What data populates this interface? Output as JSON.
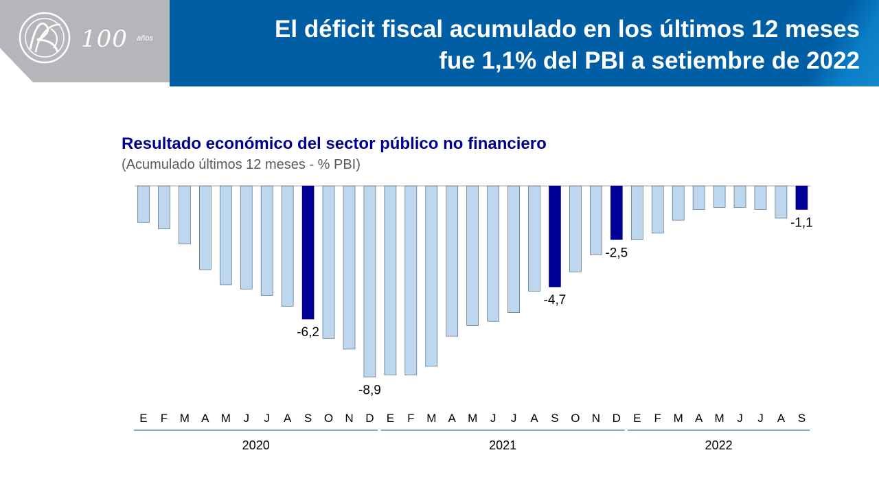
{
  "header": {
    "title_line1": "El déficit fiscal acumulado en los últimos 12 meses",
    "title_line2": "fue 1,1% del PBI a setiembre de 2022"
  },
  "logo": {
    "years": "100",
    "suffix": "años",
    "icon": "bcrp-monogram-logo"
  },
  "colors": {
    "header_bg": "#005ea5",
    "logo_bg": "#b4b6ba",
    "bar_light": "#bdd7ee",
    "bar_highlight": "#000099",
    "title_color": "#00008b"
  },
  "chart_data": {
    "type": "bar",
    "title": "Resultado económico del sector público no financiero",
    "subtitle": "(Acumulado últimos 12 meses - % PBI)",
    "categories": [
      "E",
      "F",
      "M",
      "A",
      "M",
      "J",
      "J",
      "A",
      "S",
      "O",
      "N",
      "D",
      "E",
      "F",
      "M",
      "A",
      "M",
      "J",
      "J",
      "A",
      "S",
      "O",
      "N",
      "D",
      "E",
      "F",
      "M",
      "A",
      "M",
      "J",
      "J",
      "A",
      "S"
    ],
    "years": [
      {
        "label": "2020",
        "start": 0,
        "end": 11
      },
      {
        "label": "2021",
        "start": 12,
        "end": 23
      },
      {
        "label": "2022",
        "start": 24,
        "end": 32
      }
    ],
    "values": [
      -1.7,
      -2.0,
      -2.7,
      -3.9,
      -4.6,
      -4.8,
      -5.1,
      -5.6,
      -6.2,
      -7.1,
      -7.6,
      -8.9,
      -8.8,
      -8.8,
      -8.4,
      -7.0,
      -6.5,
      -6.3,
      -5.9,
      -4.9,
      -4.7,
      -4.0,
      -3.2,
      -2.5,
      -2.5,
      -2.2,
      -1.6,
      -1.1,
      -1.0,
      -1.0,
      -1.1,
      -1.5,
      -1.1
    ],
    "highlight": [
      8,
      20,
      23,
      32
    ],
    "data_labels": [
      {
        "index": 8,
        "text": "-6,2"
      },
      {
        "index": 11,
        "text": "-8,9"
      },
      {
        "index": 20,
        "text": "-4,7"
      },
      {
        "index": 23,
        "text": "-2,5"
      },
      {
        "index": 32,
        "text": "-1,1"
      }
    ],
    "ylim": [
      -9.5,
      0
    ],
    "grid": false,
    "legend": "none"
  }
}
